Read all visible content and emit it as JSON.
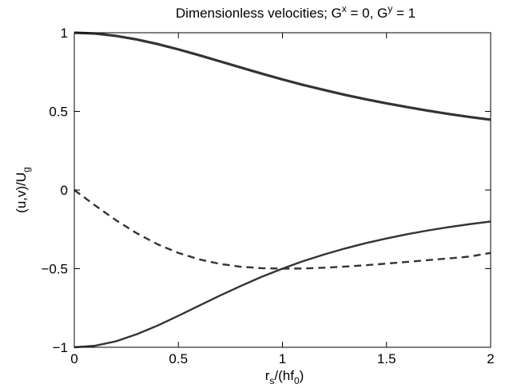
{
  "chart_data": {
    "type": "line",
    "title_parts": [
      "Dimensionless velocities; G",
      "x",
      " = 0, G",
      "y",
      " = 1"
    ],
    "xlabel_parts": [
      "r",
      "s",
      "/(hf",
      "0",
      ")"
    ],
    "ylabel_parts": [
      "(u,v)/U",
      "g"
    ],
    "xlim": [
      0,
      2
    ],
    "ylim": [
      -1,
      1
    ],
    "xticks": [
      0,
      0.5,
      1,
      1.5,
      2
    ],
    "xtick_labels": [
      "0",
      "0.5",
      "1",
      "1.5",
      "2"
    ],
    "yticks": [
      -1,
      -0.5,
      0,
      0.5,
      1
    ],
    "ytick_labels": [
      "−1",
      "−0.5",
      "0",
      "0.5",
      "1"
    ],
    "grid": false,
    "series": [
      {
        "style": "solid-thick",
        "color": "#333333",
        "x": [
          0,
          0.1,
          0.2,
          0.3,
          0.4,
          0.5,
          0.6,
          0.7,
          0.8,
          0.9,
          1.0,
          1.1,
          1.2,
          1.3,
          1.4,
          1.5,
          1.6,
          1.7,
          1.8,
          1.9,
          2.0
        ],
        "y": [
          1.0,
          0.995,
          0.98,
          0.957,
          0.928,
          0.894,
          0.857,
          0.818,
          0.779,
          0.74,
          0.703,
          0.668,
          0.636,
          0.605,
          0.577,
          0.551,
          0.527,
          0.504,
          0.483,
          0.464,
          0.447
        ]
      },
      {
        "style": "dashed",
        "color": "#333333",
        "x": [
          0,
          0.1,
          0.2,
          0.3,
          0.4,
          0.5,
          0.6,
          0.7,
          0.8,
          0.9,
          1.0,
          1.1,
          1.2,
          1.3,
          1.4,
          1.5,
          1.6,
          1.7,
          1.8,
          1.9,
          2.0
        ],
        "y": [
          0,
          -0.098,
          -0.192,
          -0.275,
          -0.345,
          -0.4,
          -0.441,
          -0.47,
          -0.488,
          -0.497,
          -0.5,
          -0.499,
          -0.494,
          -0.487,
          -0.478,
          -0.468,
          -0.457,
          -0.446,
          -0.435,
          -0.423,
          -0.4
        ]
      },
      {
        "style": "solid",
        "color": "#333333",
        "x": [
          0,
          0.1,
          0.2,
          0.3,
          0.4,
          0.5,
          0.6,
          0.7,
          0.8,
          0.9,
          1.0,
          1.1,
          1.2,
          1.3,
          1.4,
          1.5,
          1.6,
          1.7,
          1.8,
          1.9,
          2.0
        ],
        "y": [
          -1.0,
          -0.99,
          -0.962,
          -0.917,
          -0.862,
          -0.8,
          -0.735,
          -0.671,
          -0.61,
          -0.552,
          -0.5,
          -0.452,
          -0.41,
          -0.372,
          -0.338,
          -0.308,
          -0.281,
          -0.257,
          -0.236,
          -0.217,
          -0.2
        ]
      }
    ]
  }
}
